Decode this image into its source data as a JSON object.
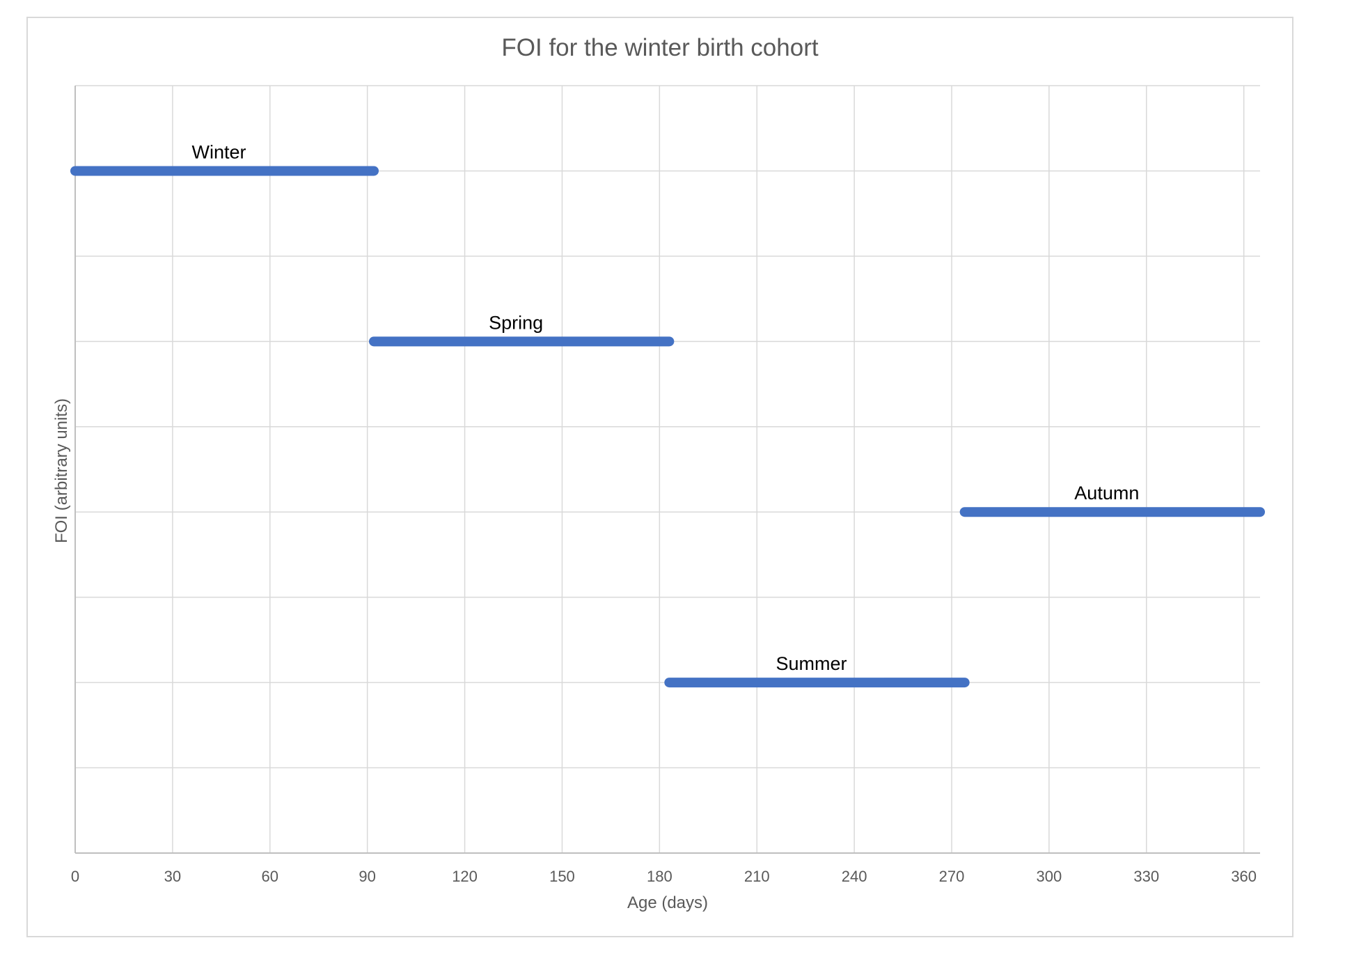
{
  "chart_data": {
    "type": "line",
    "title": "FOI for the winter birth cohort",
    "xlabel": "Age (days)",
    "ylabel": "FOI (arbitrary units)",
    "xlim": [
      0,
      365
    ],
    "ylim": [
      0,
      9
    ],
    "x_ticks": [
      0,
      30,
      60,
      90,
      120,
      150,
      180,
      210,
      240,
      270,
      300,
      330,
      360
    ],
    "y_gridlines": [
      1,
      2,
      3,
      4,
      5,
      6,
      7,
      8,
      9
    ],
    "show_y_tick_labels": false,
    "grid": true,
    "line_color": "#4472C4",
    "series": [
      {
        "name": "Winter",
        "x": [
          0,
          92
        ],
        "y": [
          8,
          8
        ]
      },
      {
        "name": "Spring",
        "x": [
          92,
          183
        ],
        "y": [
          6,
          6
        ]
      },
      {
        "name": "Summer",
        "x": [
          183,
          274
        ],
        "y": [
          2,
          2
        ]
      },
      {
        "name": "Autumn",
        "x": [
          274,
          365
        ],
        "y": [
          4,
          4
        ]
      }
    ]
  }
}
